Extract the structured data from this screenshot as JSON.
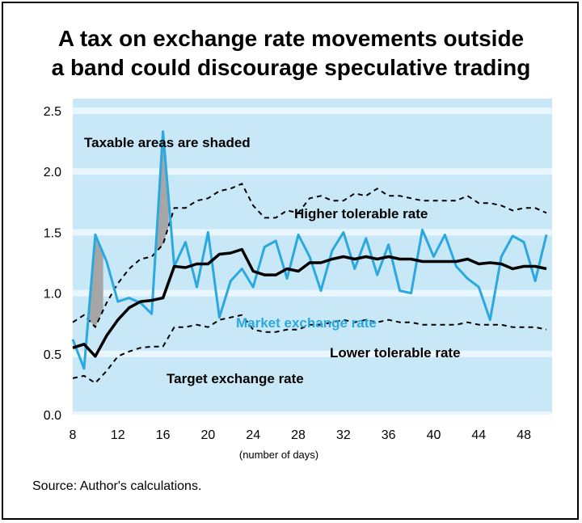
{
  "title_line1": "A tax on exchange rate movements outside",
  "title_line2": "a band could discourage speculative trading",
  "source": "Source: Author's calculations.",
  "colors": {
    "band": "#c8e8f7",
    "gap": "#e9f6fd",
    "market": "#2aa8df",
    "target": "#000000",
    "tolerable": "#000000",
    "shade": "#a6a6a6"
  },
  "chart_data": {
    "type": "line",
    "xlabel": "(number of days)",
    "ylabel": "",
    "xlim": [
      8,
      50.5
    ],
    "ylim": [
      0,
      2.6
    ],
    "xticks": [
      8,
      12,
      16,
      20,
      24,
      28,
      32,
      36,
      40,
      44,
      48
    ],
    "yticks": [
      "0.0",
      "0.5",
      "1.0",
      "1.5",
      "2.0",
      "2.5"
    ],
    "annotations": {
      "taxable": "Taxable areas are shaded",
      "higher": "Higher tolerable rate",
      "market": "Market exchange rate",
      "lower": "Lower tolerable rate",
      "target": "Target exchange rate"
    },
    "x": [
      8,
      9,
      10,
      11,
      12,
      13,
      14,
      15,
      16,
      17,
      18,
      19,
      20,
      21,
      22,
      23,
      24,
      25,
      26,
      27,
      28,
      29,
      30,
      31,
      32,
      33,
      34,
      35,
      36,
      37,
      38,
      39,
      40,
      41,
      42,
      43,
      44,
      45,
      46,
      47,
      48,
      49,
      50
    ],
    "series": [
      {
        "name": "Market exchange rate",
        "values": [
          0.62,
          0.38,
          1.48,
          1.26,
          0.93,
          0.96,
          0.92,
          0.83,
          2.33,
          1.22,
          1.42,
          1.05,
          1.5,
          0.8,
          1.1,
          1.2,
          1.05,
          1.38,
          1.43,
          1.12,
          1.48,
          1.3,
          1.02,
          1.35,
          1.5,
          1.2,
          1.45,
          1.15,
          1.4,
          1.02,
          1.0,
          1.52,
          1.3,
          1.48,
          1.22,
          1.12,
          1.05,
          0.78,
          1.3,
          1.47,
          1.42,
          1.1,
          1.48
        ]
      },
      {
        "name": "Target exchange rate",
        "values": [
          0.55,
          0.58,
          0.48,
          0.65,
          0.78,
          0.88,
          0.93,
          0.94,
          0.96,
          1.22,
          1.21,
          1.24,
          1.24,
          1.32,
          1.33,
          1.36,
          1.18,
          1.15,
          1.15,
          1.2,
          1.18,
          1.25,
          1.25,
          1.28,
          1.3,
          1.28,
          1.3,
          1.28,
          1.3,
          1.28,
          1.28,
          1.26,
          1.26,
          1.26,
          1.26,
          1.28,
          1.24,
          1.25,
          1.24,
          1.2,
          1.22,
          1.22,
          1.2
        ]
      },
      {
        "name": "Higher tolerable rate",
        "values": [
          0.76,
          0.82,
          0.72,
          0.92,
          1.08,
          1.2,
          1.28,
          1.3,
          1.4,
          1.7,
          1.7,
          1.76,
          1.78,
          1.84,
          1.86,
          1.9,
          1.72,
          1.62,
          1.62,
          1.68,
          1.66,
          1.78,
          1.8,
          1.76,
          1.76,
          1.82,
          1.8,
          1.86,
          1.8,
          1.8,
          1.78,
          1.76,
          1.76,
          1.76,
          1.76,
          1.8,
          1.74,
          1.74,
          1.72,
          1.68,
          1.7,
          1.7,
          1.66
        ]
      },
      {
        "name": "Lower tolerable rate",
        "values": [
          0.3,
          0.32,
          0.26,
          0.36,
          0.48,
          0.52,
          0.55,
          0.56,
          0.56,
          0.72,
          0.72,
          0.74,
          0.72,
          0.78,
          0.8,
          0.82,
          0.7,
          0.68,
          0.68,
          0.7,
          0.7,
          0.74,
          0.74,
          0.76,
          0.78,
          0.76,
          0.78,
          0.76,
          0.78,
          0.76,
          0.76,
          0.74,
          0.74,
          0.74,
          0.74,
          0.76,
          0.74,
          0.74,
          0.74,
          0.72,
          0.72,
          0.72,
          0.7
        ]
      }
    ],
    "shaded": [
      {
        "from": 9.4,
        "to": 10.7
      },
      {
        "from": 15.3,
        "to": 16.5
      }
    ],
    "grid": true,
    "legend": "none"
  }
}
